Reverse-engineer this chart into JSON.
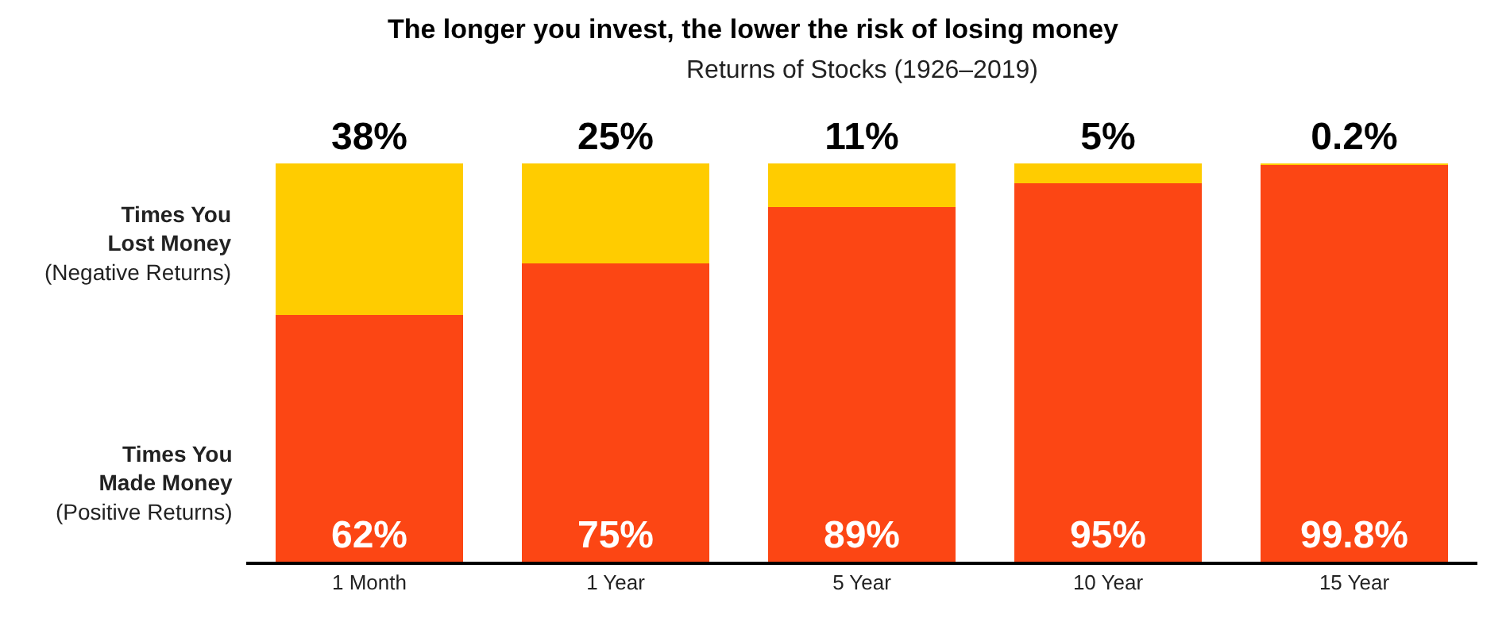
{
  "chart_data": {
    "type": "bar",
    "title": "The longer you invest, the lower the risk of losing money",
    "subtitle": "Returns of Stocks (1926–2019)",
    "categories": [
      "1 Month",
      "1 Year",
      "5 Year",
      "10 Year",
      "15 Year"
    ],
    "stacked": true,
    "ylim": [
      0,
      100
    ],
    "tick_labels": "x",
    "legend": false,
    "series": [
      {
        "name": "Times You Made Money (Positive Returns)",
        "color": "#fc4614",
        "values": [
          62,
          75,
          89,
          95,
          99.8
        ],
        "value_labels": [
          "62%",
          "75%",
          "89%",
          "95%",
          "99.8%"
        ]
      },
      {
        "name": "Times You Lost Money (Negative Returns)",
        "color": "#ffcc00",
        "values": [
          38,
          25,
          11,
          5,
          0.2
        ],
        "value_labels": [
          "38%",
          "25%",
          "11%",
          "5%",
          "0.2%"
        ]
      }
    ]
  }
}
